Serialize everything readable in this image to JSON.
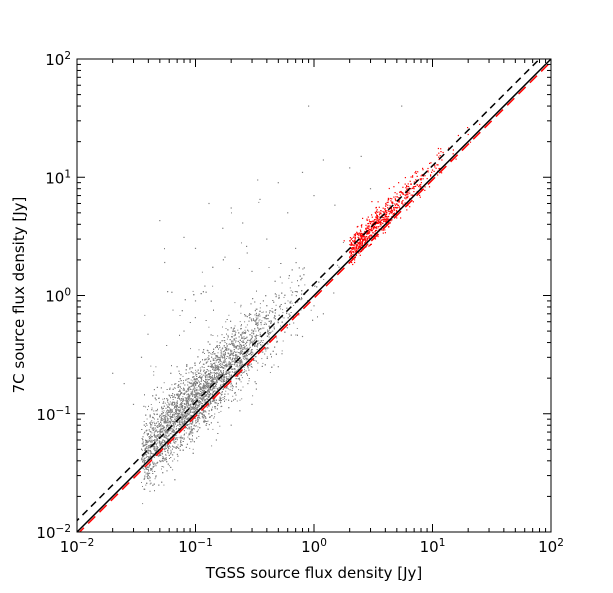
{
  "chart_data": {
    "type": "scatter",
    "title": "",
    "xlabel": "TGSS source flux density [Jy]",
    "ylabel": "7C source flux density [Jy]",
    "xscale": "log",
    "yscale": "log",
    "xlim": [
      0.01,
      100
    ],
    "ylim": [
      0.01,
      100
    ],
    "grid": false,
    "legend": "none",
    "x_tick_values": [
      0.01,
      0.1,
      1,
      10,
      100
    ],
    "x_tick_labels": [
      {
        "base": "10",
        "exp": "−2"
      },
      {
        "base": "10",
        "exp": "−1"
      },
      {
        "base": "10",
        "exp": "0"
      },
      {
        "base": "10",
        "exp": "1"
      },
      {
        "base": "10",
        "exp": "2"
      }
    ],
    "y_tick_values": [
      0.01,
      0.1,
      1,
      10,
      100
    ],
    "y_tick_labels": [
      {
        "base": "10",
        "exp": "−2"
      },
      {
        "base": "10",
        "exp": "−1"
      },
      {
        "base": "10",
        "exp": "0"
      },
      {
        "base": "10",
        "exp": "1"
      },
      {
        "base": "10",
        "exp": "2"
      }
    ],
    "series": [
      {
        "kind": "scatter",
        "color": "#808080",
        "summary": "dense cloud of sources; main ridge y ≈ 1.3·x from 0.06 to 2 Jy, scatter ≈ ±0.15 dex, upper outliers up to 40 Jy",
        "points": [
          [
            0.05,
            4.3
          ],
          [
            0.055,
            1.9
          ],
          [
            0.08,
            3.1
          ],
          [
            0.1,
            2.5
          ],
          [
            0.13,
            6.0
          ],
          [
            0.17,
            3.7
          ],
          [
            0.2,
            5.5
          ],
          [
            0.25,
            4.1
          ],
          [
            0.27,
            2.6
          ],
          [
            0.3,
            1.6
          ],
          [
            0.35,
            6.5
          ],
          [
            0.4,
            3.0
          ],
          [
            0.5,
            9.0
          ],
          [
            0.6,
            5.0
          ],
          [
            0.7,
            2.5
          ],
          [
            0.8,
            11.0
          ],
          [
            1.0,
            7.0
          ],
          [
            1.2,
            14.0
          ],
          [
            1.5,
            5.8
          ],
          [
            2.0,
            12.0
          ],
          [
            2.5,
            15.0
          ],
          [
            0.9,
            40.0
          ],
          [
            5.5,
            40.0
          ],
          [
            3.0,
            8.0
          ],
          [
            0.02,
            0.22
          ],
          [
            0.025,
            0.18
          ],
          [
            0.03,
            0.12
          ],
          [
            0.035,
            0.3
          ],
          [
            0.045,
            0.16
          ],
          [
            0.06,
            0.08
          ],
          [
            0.07,
            0.25
          ],
          [
            0.08,
            0.5
          ],
          [
            0.1,
            0.9
          ],
          [
            0.12,
            1.2
          ],
          [
            0.15,
            0.06
          ],
          [
            0.2,
            0.08
          ],
          [
            0.3,
            0.12
          ],
          [
            0.5,
            0.25
          ],
          [
            0.8,
            0.45
          ],
          [
            1.2,
            0.7
          ]
        ]
      },
      {
        "kind": "scatter",
        "color": "#ff0000",
        "summary": "sources with TGSS flux > ~2 Jy, y ≈ 1.2·x from 2 to 25 Jy; red points also lie along the dashed fit line",
        "points": [
          [
            2.0,
            2.3
          ],
          [
            2.3,
            2.6
          ],
          [
            2.5,
            3.2
          ],
          [
            2.8,
            2.9
          ],
          [
            3.0,
            3.6
          ],
          [
            3.5,
            3.8
          ],
          [
            4.0,
            4.4
          ],
          [
            4.5,
            5.5
          ],
          [
            5.0,
            5.9
          ],
          [
            6.0,
            6.8
          ],
          [
            7.0,
            8.0
          ],
          [
            8.0,
            9.5
          ],
          [
            10.0,
            11.5
          ],
          [
            12.0,
            14.0
          ],
          [
            15.0,
            17.0
          ],
          [
            20.0,
            23.0
          ],
          [
            25.0,
            28.0
          ],
          [
            2.2,
            1.9
          ],
          [
            3.0,
            2.7
          ],
          [
            1.8,
            2.9
          ]
        ]
      }
    ],
    "lines": [
      {
        "kind": "solid",
        "color": "#000000",
        "relation": "y = x"
      },
      {
        "kind": "dashed",
        "color": "#000000",
        "relation": "y = 1.25·x"
      },
      {
        "kind": "dashed",
        "color": "#ff0000",
        "relation": "y = 0.95·x"
      }
    ]
  }
}
